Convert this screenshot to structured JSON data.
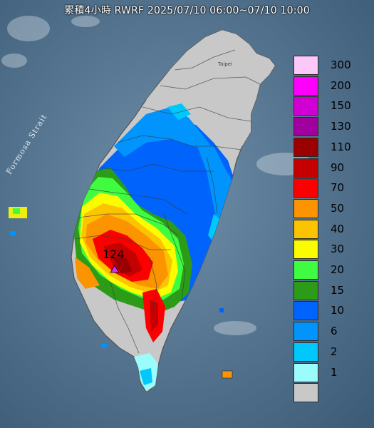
{
  "title": "累積4小時 RWRF 2025/07/10 06:00~07/10 10:00",
  "strait_label": "Formosa Strait",
  "peak": {
    "value": "124",
    "icon": "triangle-max-icon",
    "color": "#cc33ff"
  },
  "city_label": "Taipei",
  "legend": [
    {
      "label": "300",
      "color": "#fcc8fa"
    },
    {
      "label": "200",
      "color": "#fc00fc"
    },
    {
      "label": "150",
      "color": "#d000d4"
    },
    {
      "label": "130",
      "color": "#a0009e"
    },
    {
      "label": "110",
      "color": "#9b0000"
    },
    {
      "label": "90",
      "color": "#c50000"
    },
    {
      "label": "70",
      "color": "#fc0000"
    },
    {
      "label": "50",
      "color": "#fc9400"
    },
    {
      "label": "40",
      "color": "#fcc400"
    },
    {
      "label": "30",
      "color": "#fcfc00"
    },
    {
      "label": "20",
      "color": "#40fc40"
    },
    {
      "label": "15",
      "color": "#2c9c18"
    },
    {
      "label": "10",
      "color": "#0064fc"
    },
    {
      "label": "6",
      "color": "#0094fc"
    },
    {
      "label": "2",
      "color": "#00c8fc"
    },
    {
      "label": "1",
      "color": "#9cfcfc"
    },
    {
      "label": "",
      "color": "#c8c8c8"
    }
  ]
}
